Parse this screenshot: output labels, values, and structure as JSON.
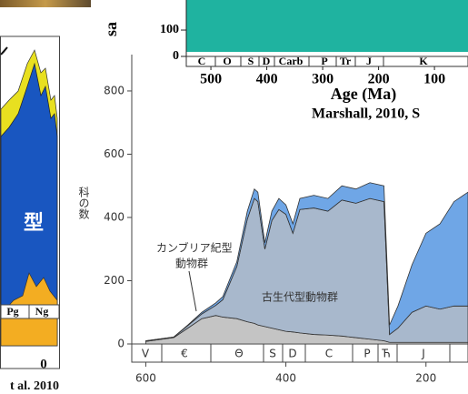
{
  "chart_data": [
    {
      "type": "fragment-left",
      "texts": [
        "型",
        "Pg",
        "Ng",
        "0",
        "t al. 2010"
      ]
    },
    {
      "type": "fragment-top",
      "ylabel": "sa",
      "color": "#1fb3a0",
      "xlim": [
        544,
        40
      ],
      "ylim": [
        0,
        214
      ],
      "yticks": [
        0,
        100
      ],
      "xticks": [
        500,
        400,
        300,
        200,
        100
      ],
      "periods": [
        "C",
        "O",
        "S",
        "D",
        "Carb",
        "P",
        "Tr",
        "J",
        "K"
      ],
      "xlabel": "Age (Ma)",
      "source": "Marshall, 2010, S"
    },
    {
      "type": "area",
      "ylabel": "科の数",
      "x": [
        600,
        560,
        540,
        520,
        500,
        490,
        470,
        455,
        445,
        440,
        430,
        420,
        410,
        400,
        390,
        380,
        360,
        340,
        320,
        300,
        280,
        260,
        252,
        240,
        220,
        200,
        180,
        160,
        140
      ],
      "series": [
        {
          "color": "#c4c4c4",
          "values": [
            8,
            20,
            50,
            80,
            90,
            85,
            80,
            70,
            65,
            60,
            55,
            50,
            45,
            40,
            38,
            35,
            30,
            28,
            25,
            20,
            15,
            10,
            5,
            5,
            5,
            5,
            5,
            5,
            5
          ]
        },
        {
          "color": "#a8b8cc",
          "values": [
            2,
            2,
            8,
            15,
            32,
            55,
            165,
            325,
            395,
            390,
            245,
            340,
            380,
            370,
            312,
            390,
            400,
            392,
            430,
            425,
            445,
            440,
            25,
            45,
            95,
            115,
            105,
            115,
            115
          ]
        },
        {
          "color": "#6fa6e6",
          "values": [
            0,
            0,
            2,
            5,
            8,
            10,
            15,
            25,
            30,
            30,
            20,
            30,
            35,
            30,
            30,
            35,
            40,
            40,
            45,
            45,
            50,
            50,
            30,
            70,
            150,
            230,
            270,
            330,
            360
          ]
        }
      ],
      "xlim": [
        620,
        140
      ],
      "ylim": [
        0,
        820
      ],
      "yticks": [
        0,
        200,
        400,
        600,
        800
      ],
      "xticks": [
        600,
        400,
        200
      ],
      "periods": [
        "V",
        "€",
        "Θ",
        "S",
        "D",
        "C",
        "P",
        "Ћ",
        "J"
      ],
      "annotations": [
        "カンブリア紀型",
        "動物群",
        "古生代型動物群"
      ]
    }
  ]
}
